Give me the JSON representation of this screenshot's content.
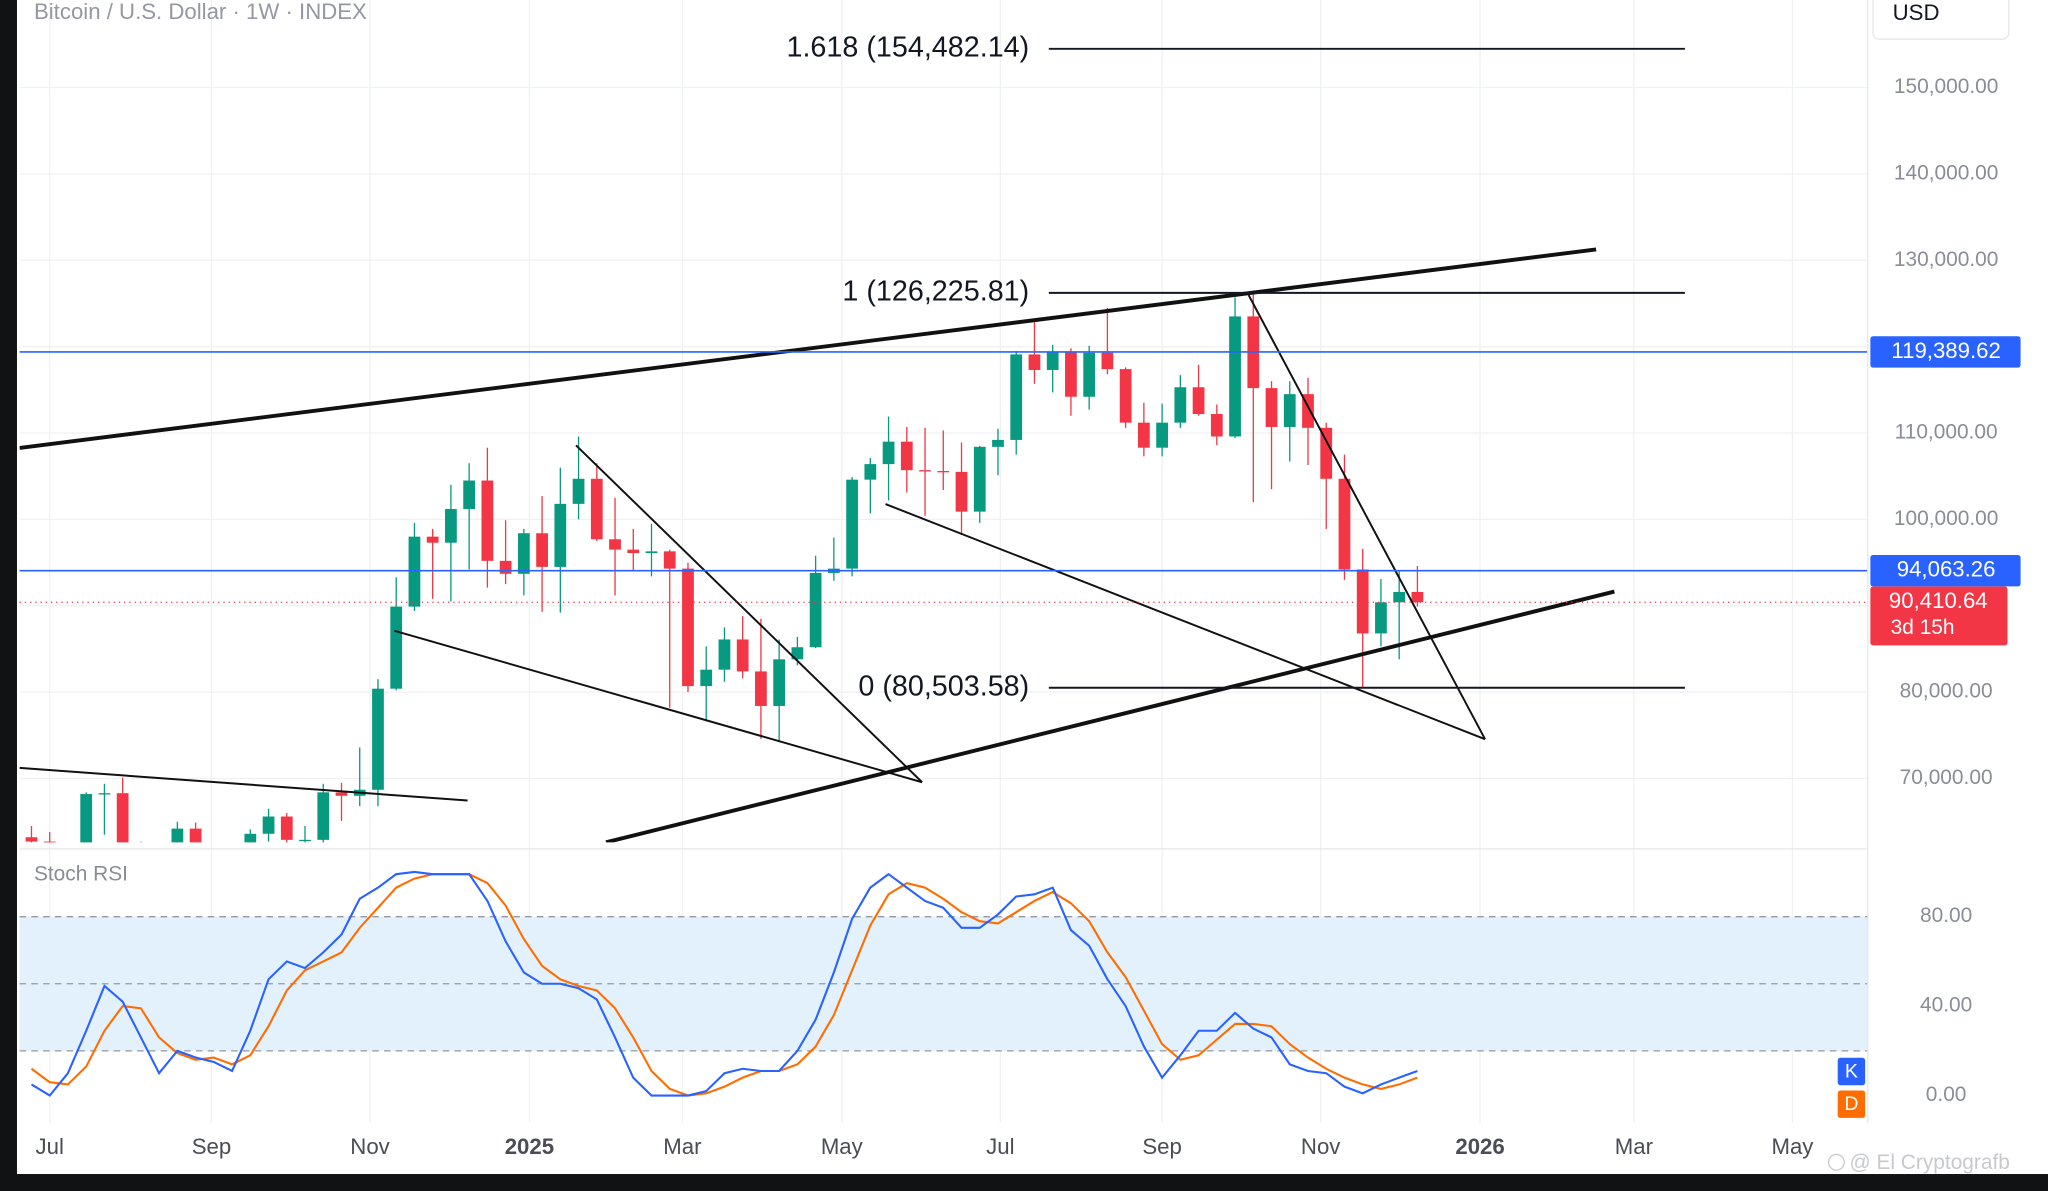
{
  "watermark": "@ El Cryptografb",
  "chart_data": [
    {
      "type": "candlestick",
      "title": "Bitcoin / U.S. Dollar · 1W · INDEX",
      "y_unit": "USD",
      "up_color": "#089981",
      "down_color": "#f23645",
      "x": [
        -0.23,
        0,
        0.23,
        0.46,
        0.69,
        0.92,
        1.15,
        1.38,
        1.61,
        1.84,
        2.07,
        2.3,
        2.53,
        2.76,
        2.99,
        3.22,
        3.45,
        3.68,
        3.91,
        4.14,
        4.37,
        4.6,
        4.83,
        5.06,
        5.29,
        5.52,
        5.75,
        5.98,
        6.21,
        6.44,
        6.67,
        6.9,
        7.13,
        7.36,
        7.59,
        7.82,
        8.05,
        8.28,
        8.51,
        8.74,
        8.97,
        9.2,
        9.43,
        9.66,
        9.89,
        10.12,
        10.35,
        10.58,
        10.81,
        11.04,
        11.27,
        11.5,
        11.73,
        11.96,
        12.19,
        12.42,
        12.65,
        12.88,
        13.11,
        13.34,
        13.57,
        13.8,
        14.03,
        14.26,
        14.49,
        14.72,
        14.95,
        15.18,
        15.41,
        15.64,
        15.87,
        16.1,
        16.33,
        16.56,
        16.79,
        17.02,
        17.25
      ],
      "open": [
        63200,
        62700,
        55800,
        60800,
        68200,
        68300,
        58100,
        58700,
        58900,
        64200,
        57300,
        54800,
        60000,
        63600,
        65600,
        62900,
        62900,
        68400,
        68000,
        68700,
        80400,
        89900,
        98000,
        97300,
        101200,
        104500,
        95200,
        93700,
        98400,
        94500,
        101800,
        104700,
        97700,
        96500,
        96100,
        96300,
        94300,
        80700,
        82600,
        86100,
        82400,
        78400,
        83800,
        85200,
        93800,
        94300,
        104600,
        106400,
        109000,
        105700,
        105600,
        105500,
        100900,
        108400,
        109200,
        119100,
        117300,
        119400,
        114200,
        119300,
        117400,
        111200,
        108300,
        111200,
        115300,
        112200,
        109600,
        123500,
        115200,
        110700,
        114500,
        110600,
        104700,
        94200,
        86800,
        90400,
        91600
      ],
      "high": [
        64500,
        63800,
        61400,
        68400,
        69400,
        70100,
        62700,
        61800,
        65000,
        64900,
        59800,
        60600,
        64100,
        66500,
        66000,
        64500,
        69400,
        69500,
        73600,
        81500,
        93300,
        99600,
        98900,
        104000,
        106500,
        108300,
        99900,
        98900,
        102700,
        106000,
        109600,
        106500,
        102500,
        98900,
        99500,
        96500,
        95000,
        85300,
        87500,
        88800,
        88500,
        86100,
        86400,
        95800,
        97900,
        104900,
        107100,
        111900,
        110700,
        110600,
        110300,
        108900,
        108500,
        110500,
        119500,
        123200,
        120200,
        119800,
        120100,
        124500,
        117600,
        113500,
        113400,
        116700,
        117900,
        113300,
        125700,
        126225.81,
        116000,
        116000,
        116400,
        111200,
        107500,
        96600,
        93100,
        94100,
        94600
      ],
      "low": [
        58400,
        53500,
        54300,
        60600,
        63500,
        57200,
        49100,
        56100,
        58000,
        57200,
        52500,
        54600,
        57500,
        62700,
        59800,
        58900,
        62000,
        65100,
        66800,
        66800,
        80200,
        89400,
        90800,
        90500,
        94200,
        92100,
        92500,
        91200,
        89300,
        89200,
        100000,
        97500,
        91200,
        94100,
        93400,
        78200,
        80000,
        76600,
        81200,
        81600,
        74600,
        74400,
        83100,
        85100,
        92900,
        93400,
        100700,
        102200,
        103100,
        100400,
        103400,
        98200,
        99600,
        105100,
        107500,
        115700,
        114700,
        112000,
        112700,
        116800,
        110600,
        107300,
        107300,
        110600,
        112000,
        108600,
        109400,
        102000,
        103500,
        106700,
        106300,
        98900,
        93000,
        80503.58,
        85300,
        83800,
        89900
      ],
      "close": [
        62700,
        55800,
        60800,
        68200,
        68300,
        58100,
        58700,
        58900,
        64200,
        57300,
        54800,
        60000,
        63600,
        65600,
        62900,
        62900,
        68400,
        68000,
        68700,
        80400,
        89900,
        98000,
        97300,
        101200,
        104500,
        95200,
        93700,
        98400,
        94500,
        101800,
        104700,
        97700,
        96500,
        96100,
        96300,
        94300,
        80700,
        82600,
        86100,
        82400,
        78400,
        83800,
        85200,
        93800,
        94300,
        104600,
        106400,
        109000,
        105700,
        105600,
        105500,
        100900,
        108400,
        109200,
        119100,
        117300,
        119400,
        114200,
        119300,
        117400,
        111200,
        108300,
        111200,
        115300,
        112200,
        109600,
        123500,
        115200,
        110700,
        114500,
        110600,
        104700,
        94200,
        86800,
        90400,
        91600,
        90410.64
      ],
      "xlim": [
        -0.38,
        22.93
      ],
      "ylim": [
        62613,
        160133
      ],
      "yticks": [
        {
          "value": 70000,
          "label": "70,000.00"
        },
        {
          "value": 80000,
          "label": "80,000.00"
        },
        {
          "value": 90000,
          "label": "90,000.00"
        },
        {
          "value": 100000,
          "label": "100,000.00"
        },
        {
          "value": 110000,
          "label": "110,000.00"
        },
        {
          "value": 120000,
          "label": "120,000.00"
        },
        {
          "value": 130000,
          "label": "130,000.00"
        },
        {
          "value": 140000,
          "label": "140,000.00"
        },
        {
          "value": 150000,
          "label": "150,000.00"
        }
      ],
      "grid": true,
      "fib_levels": [
        {
          "value": 154482.14,
          "label": "1.618 (154,482.14)"
        },
        {
          "value": 126225.81,
          "label": "1 (126,225.81)"
        },
        {
          "value": 80503.58,
          "label": "0 (80,503.58)"
        }
      ],
      "price_lines": [
        {
          "value": 119389.62,
          "label": "119,389.62",
          "color": "#2962ff"
        },
        {
          "value": 94063.26,
          "label": "94,063.26",
          "color": "#2962ff"
        }
      ],
      "last_price": {
        "value": 90410.64,
        "label": "90,410.64",
        "countdown": "3d 15h",
        "color": "#f23645"
      }
    },
    {
      "type": "line",
      "title": "Stoch RSI",
      "x": [
        -0.23,
        0,
        0.23,
        0.46,
        0.69,
        0.92,
        1.15,
        1.38,
        1.61,
        1.84,
        2.07,
        2.3,
        2.53,
        2.76,
        2.99,
        3.22,
        3.45,
        3.68,
        3.91,
        4.14,
        4.37,
        4.6,
        4.83,
        5.06,
        5.29,
        5.52,
        5.75,
        5.98,
        6.21,
        6.44,
        6.67,
        6.9,
        7.13,
        7.36,
        7.59,
        7.82,
        8.05,
        8.28,
        8.51,
        8.74,
        8.97,
        9.2,
        9.43,
        9.66,
        9.89,
        10.12,
        10.35,
        10.58,
        10.81,
        11.04,
        11.27,
        11.5,
        11.73,
        11.96,
        12.19,
        12.42,
        12.65,
        12.88,
        13.11,
        13.34,
        13.57,
        13.8,
        14.03,
        14.26,
        14.49,
        14.72,
        14.95,
        15.18,
        15.41,
        15.64,
        15.87,
        16.1,
        16.33,
        16.56,
        16.79,
        17.02,
        17.25
      ],
      "series": [
        {
          "name": "K",
          "color": "#2962ff",
          "values": [
            5,
            0,
            10,
            29,
            49,
            42,
            26,
            10,
            20,
            17,
            15,
            11,
            29,
            52,
            60,
            57,
            64,
            72,
            88,
            93,
            99,
            100,
            99,
            99,
            99,
            87,
            69,
            55,
            50,
            50,
            48,
            43,
            26,
            8,
            0,
            0,
            0,
            2,
            10,
            12,
            11,
            11,
            20,
            34,
            55,
            79,
            93,
            99,
            93,
            87,
            84,
            75,
            75,
            81,
            89,
            90,
            93,
            74,
            67,
            52,
            40,
            22,
            8,
            18,
            29,
            29,
            37,
            30,
            26,
            14,
            11,
            10,
            4,
            1,
            5,
            8,
            11
          ]
        },
        {
          "name": "D",
          "color": "#ff6d00",
          "values": [
            12,
            6,
            5,
            13,
            29,
            40,
            39,
            26,
            19,
            16,
            17,
            14,
            18,
            31,
            47,
            56,
            60,
            64,
            75,
            84,
            93,
            97,
            99,
            99,
            99,
            95,
            85,
            70,
            58,
            52,
            49,
            47,
            39,
            26,
            11,
            3,
            0,
            1,
            4,
            8,
            11,
            11,
            14,
            22,
            36,
            56,
            76,
            90,
            95,
            93,
            88,
            82,
            78,
            77,
            82,
            87,
            91,
            86,
            78,
            64,
            53,
            38,
            23,
            16,
            18,
            25,
            32,
            32,
            31,
            23,
            17,
            12,
            8,
            5,
            3,
            5,
            8
          ]
        }
      ],
      "xlim": [
        -0.38,
        22.93
      ],
      "ylim": [
        -12.3,
        107.4
      ],
      "yticks": [
        {
          "value": 0,
          "label": "0.00"
        },
        {
          "value": 40,
          "label": "40.00"
        },
        {
          "value": 80,
          "label": "80.00"
        }
      ],
      "band": [
        20,
        80
      ],
      "band_color": "#e3f1fd",
      "midline": 50,
      "xticks": [
        {
          "value": 0,
          "label": "Jul"
        },
        {
          "value": 2.04,
          "label": "Sep"
        },
        {
          "value": 4.04,
          "label": "Nov"
        },
        {
          "value": 6.05,
          "label": "2025"
        },
        {
          "value": 7.98,
          "label": "Mar"
        },
        {
          "value": 9.99,
          "label": "May"
        },
        {
          "value": 11.99,
          "label": "Jul"
        },
        {
          "value": 14.03,
          "label": "Sep"
        },
        {
          "value": 16.03,
          "label": "Nov"
        },
        {
          "value": 18.04,
          "label": "2026"
        },
        {
          "value": 19.98,
          "label": "Mar"
        },
        {
          "value": 21.98,
          "label": "May"
        }
      ]
    }
  ]
}
